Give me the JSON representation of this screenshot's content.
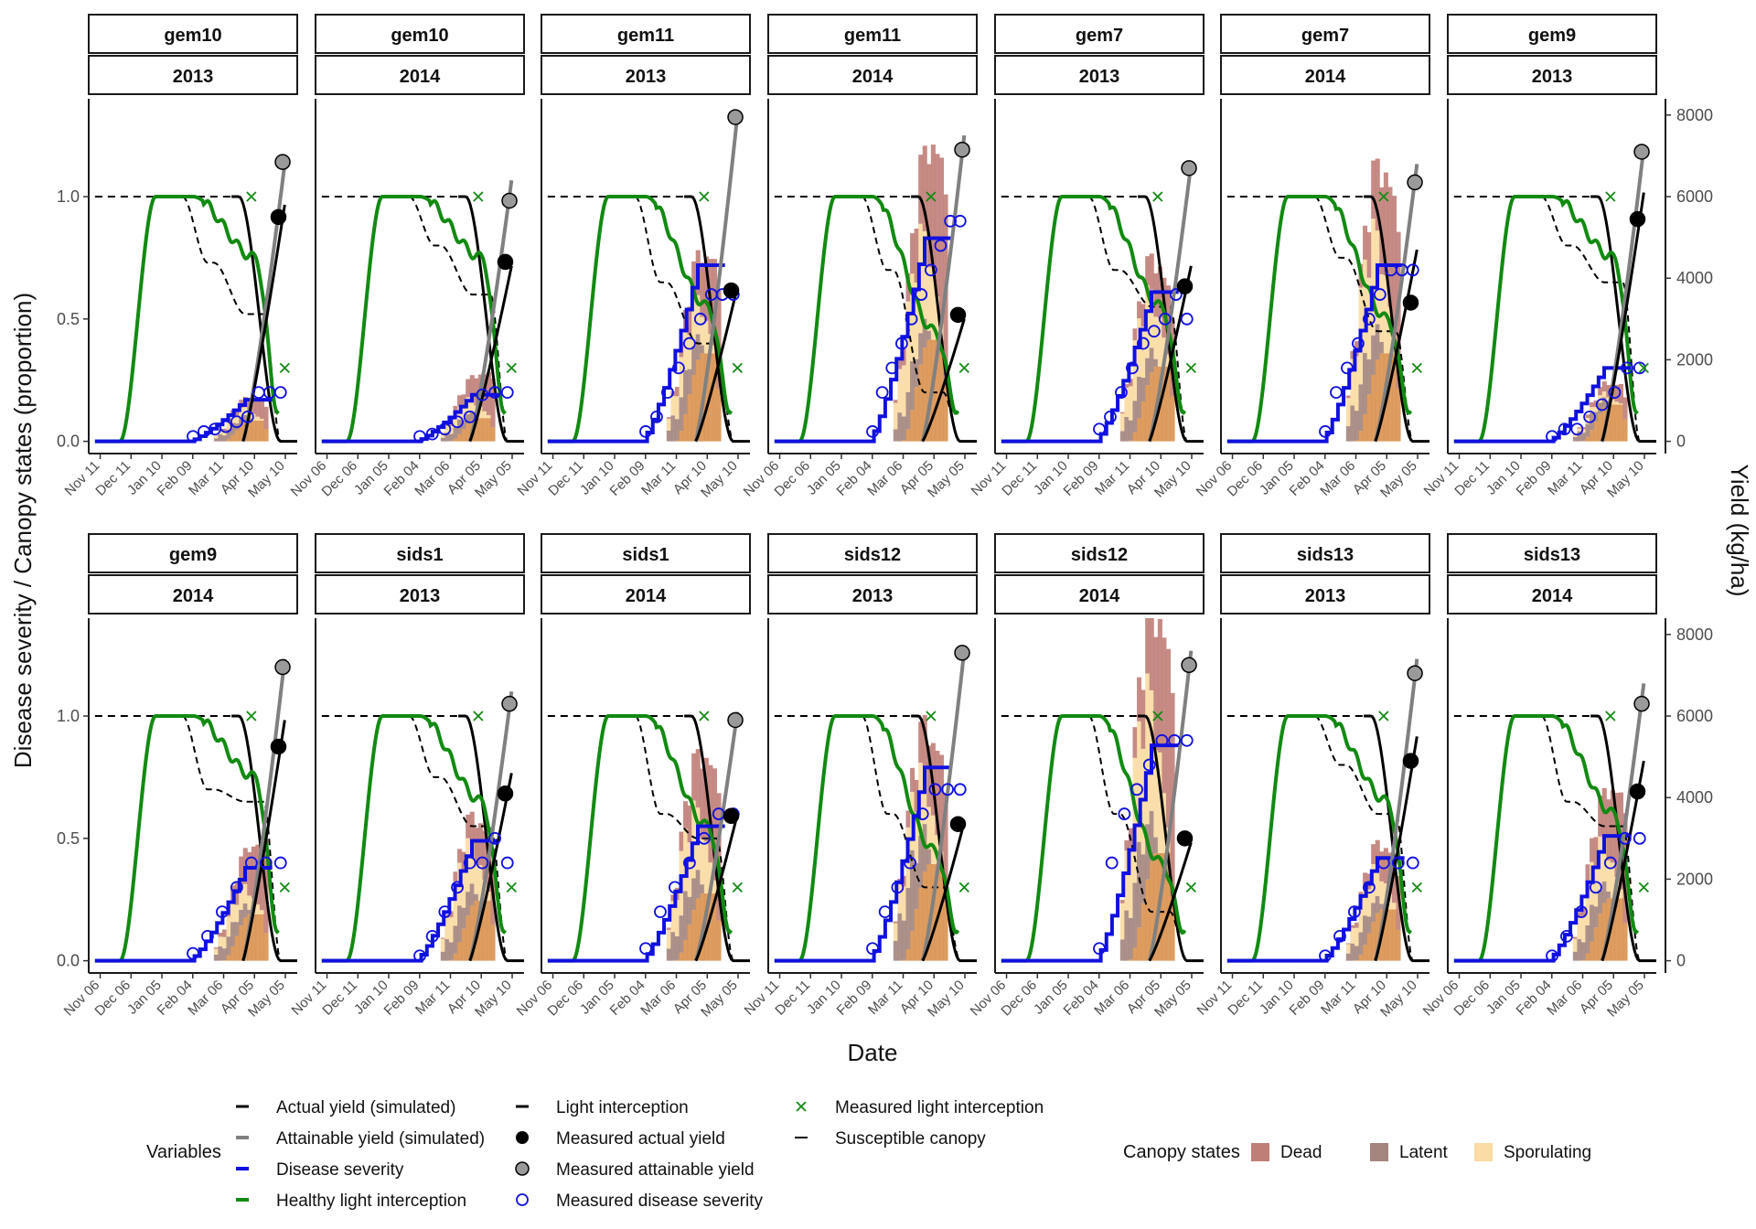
{
  "chart_data": {
    "type": "line",
    "xlabel": "Date",
    "ylabel": "Disease severity / Canopy states (proportion)",
    "y2label": "Yield (kg/ha)",
    "ylim": [
      -0.05,
      1.4
    ],
    "y_ticks": [
      "0.0",
      "0.5",
      "1.0"
    ],
    "y2_ticks": [
      "0",
      "2000",
      "4000",
      "6000",
      "8000"
    ],
    "grid": false,
    "legend_position": "bottom",
    "x_ticks_A": [
      "Nov 11",
      "Dec 11",
      "Jan 10",
      "Feb 09",
      "Mar 11",
      "Apr 10",
      "May 10"
    ],
    "x_ticks_B": [
      "Nov 06",
      "Dec 06",
      "Jan 05",
      "Feb 04",
      "Mar 06",
      "Apr 05",
      "May 05"
    ],
    "panels": [
      {
        "site": "gem10",
        "year": "2013",
        "ticks": "A",
        "sev_final": 0.17,
        "sus_step": 0.73,
        "sus_final": 0.52,
        "healthy_drop": 0.75,
        "attainable_end": 6800,
        "measured_attainable": 6850,
        "actual_end": 5800,
        "measured_actual": 5500,
        "dead_max": 0.09,
        "latent_max": 0.05,
        "spor_max": 0.04,
        "measured_severity": [
          0.02,
          0.04,
          0.05,
          0.06,
          0.08,
          0.1,
          0.2,
          0.2,
          0.2
        ],
        "measured_light": [
          1.0,
          0.3
        ]
      },
      {
        "site": "gem10",
        "year": "2014",
        "ticks": "B",
        "sev_final": 0.19,
        "sus_step": 0.8,
        "sus_final": 0.6,
        "healthy_drop": 0.75,
        "attainable_end": 6400,
        "measured_attainable": 5900,
        "actual_end": 4300,
        "measured_actual": 4400,
        "dead_max": 0.2,
        "latent_max": 0.06,
        "spor_max": 0.07,
        "measured_severity": [
          0.02,
          0.03,
          0.05,
          0.08,
          0.1,
          0.19,
          0.2,
          0.2
        ],
        "measured_light": [
          1.0,
          0.3
        ]
      },
      {
        "site": "gem11",
        "year": "2013",
        "ticks": "A",
        "sev_final": 0.72,
        "sus_step": 0.65,
        "sus_final": 0.4,
        "healthy_drop": 0.55,
        "attainable_end": 8000,
        "measured_attainable": 7950,
        "actual_end": 3800,
        "measured_actual": 3700,
        "dead_max": 0.4,
        "latent_max": 0.18,
        "spor_max": 0.2,
        "measured_severity": [
          0.04,
          0.1,
          0.2,
          0.3,
          0.4,
          0.5,
          0.6,
          0.6,
          0.6
        ],
        "measured_light": [
          1.0,
          0.3
        ]
      },
      {
        "site": "gem11",
        "year": "2014",
        "ticks": "B",
        "sev_final": 0.83,
        "sus_step": 0.7,
        "sus_final": 0.2,
        "healthy_drop": 0.45,
        "attainable_end": 7500,
        "measured_attainable": 7150,
        "actual_end": 3000,
        "measured_actual": 3100,
        "dead_max": 0.76,
        "latent_max": 0.2,
        "spor_max": 0.45,
        "measured_severity": [
          0.04,
          0.2,
          0.3,
          0.4,
          0.5,
          0.6,
          0.7,
          0.8,
          0.9,
          0.9
        ],
        "measured_light": [
          1.0,
          0.3
        ]
      },
      {
        "site": "gem7",
        "year": "2013",
        "ticks": "A",
        "sev_final": 0.61,
        "sus_step": 0.7,
        "sus_final": 0.55,
        "healthy_drop": 0.55,
        "attainable_end": 6800,
        "measured_attainable": 6700,
        "actual_end": 4300,
        "measured_actual": 3800,
        "dead_max": 0.32,
        "latent_max": 0.17,
        "spor_max": 0.3,
        "measured_severity": [
          0.05,
          0.1,
          0.2,
          0.3,
          0.4,
          0.45,
          0.5,
          0.6,
          0.5
        ],
        "measured_light": [
          1.0,
          0.3
        ]
      },
      {
        "site": "gem7",
        "year": "2014",
        "ticks": "B",
        "sev_final": 0.72,
        "sus_step": 0.75,
        "sus_final": 0.45,
        "healthy_drop": 0.5,
        "attainable_end": 6800,
        "measured_attainable": 6350,
        "actual_end": 4700,
        "measured_actual": 3400,
        "dead_max": 0.64,
        "latent_max": 0.25,
        "spor_max": 0.48,
        "measured_severity": [
          0.04,
          0.2,
          0.3,
          0.4,
          0.5,
          0.6,
          0.7,
          0.7,
          0.7
        ],
        "measured_light": [
          1.0,
          0.3
        ]
      },
      {
        "site": "gem9",
        "year": "2013",
        "ticks": "A",
        "sev_final": 0.3,
        "sus_step": 0.8,
        "sus_final": 0.65,
        "healthy_drop": 0.75,
        "attainable_end": 7200,
        "measured_attainable": 7100,
        "actual_end": 6100,
        "measured_actual": 5450,
        "dead_max": 0.09,
        "latent_max": 0.07,
        "spor_max": 0.03,
        "measured_severity": [
          0.02,
          0.05,
          0.05,
          0.1,
          0.15,
          0.2,
          0.3,
          0.3
        ],
        "measured_light": [
          1.0,
          0.3
        ]
      },
      {
        "site": "gem9",
        "year": "2014",
        "ticks": "B",
        "sev_final": 0.38,
        "sus_step": 0.7,
        "sus_final": 0.65,
        "healthy_drop": 0.75,
        "attainable_end": 7400,
        "measured_attainable": 7200,
        "actual_end": 5900,
        "measured_actual": 5250,
        "dead_max": 0.32,
        "latent_max": 0.1,
        "spor_max": 0.1,
        "measured_severity": [
          0.03,
          0.1,
          0.2,
          0.3,
          0.4,
          0.4,
          0.4
        ],
        "measured_light": [
          1.0,
          0.3
        ]
      },
      {
        "site": "sids1",
        "year": "2013",
        "ticks": "A",
        "sev_final": 0.49,
        "sus_step": 0.75,
        "sus_final": 0.55,
        "healthy_drop": 0.65,
        "attainable_end": 6600,
        "measured_attainable": 6300,
        "actual_end": 4600,
        "measured_actual": 4100,
        "dead_max": 0.26,
        "latent_max": 0.15,
        "spor_max": 0.22,
        "measured_severity": [
          0.02,
          0.1,
          0.2,
          0.3,
          0.4,
          0.4,
          0.5,
          0.4
        ],
        "measured_light": [
          1.0,
          0.3
        ]
      },
      {
        "site": "sids1",
        "year": "2014",
        "ticks": "B",
        "sev_final": 0.55,
        "sus_step": 0.6,
        "sus_final": 0.5,
        "healthy_drop": 0.55,
        "attainable_end": 6100,
        "measured_attainable": 5900,
        "actual_end": 3600,
        "measured_actual": 3550,
        "dead_max": 0.52,
        "latent_max": 0.2,
        "spor_max": 0.32,
        "measured_severity": [
          0.05,
          0.2,
          0.3,
          0.4,
          0.5,
          0.6,
          0.6
        ],
        "measured_light": [
          1.0,
          0.3
        ]
      },
      {
        "site": "sids12",
        "year": "2013",
        "ticks": "A",
        "sev_final": 0.79,
        "sus_step": 0.6,
        "sus_final": 0.3,
        "healthy_drop": 0.45,
        "attainable_end": 7600,
        "measured_attainable": 7550,
        "actual_end": 3400,
        "measured_actual": 3350,
        "dead_max": 0.45,
        "latent_max": 0.33,
        "spor_max": 0.3,
        "measured_severity": [
          0.05,
          0.2,
          0.3,
          0.4,
          0.6,
          0.7,
          0.7,
          0.7
        ],
        "measured_light": [
          1.0,
          0.3
        ]
      },
      {
        "site": "sids12",
        "year": "2014",
        "ticks": "B",
        "sev_final": 0.88,
        "sus_step": 0.6,
        "sus_final": 0.2,
        "healthy_drop": 0.4,
        "attainable_end": 7600,
        "measured_attainable": 7250,
        "actual_end": 2900,
        "measured_actual": 3000,
        "dead_max": 0.83,
        "latent_max": 0.35,
        "spor_max": 0.62,
        "measured_severity": [
          0.05,
          0.4,
          0.6,
          0.7,
          0.8,
          0.9,
          0.9,
          0.9
        ],
        "measured_light": [
          1.0,
          0.3
        ]
      },
      {
        "site": "sids13",
        "year": "2013",
        "ticks": "A",
        "sev_final": 0.42,
        "sus_step": 0.8,
        "sus_final": 0.6,
        "healthy_drop": 0.65,
        "attainable_end": 7400,
        "measured_attainable": 7050,
        "actual_end": 5500,
        "measured_actual": 4900,
        "dead_max": 0.22,
        "latent_max": 0.12,
        "spor_max": 0.16,
        "measured_severity": [
          0.02,
          0.1,
          0.2,
          0.3,
          0.4,
          0.4,
          0.4
        ],
        "measured_light": [
          1.0,
          0.3
        ]
      },
      {
        "site": "sids13",
        "year": "2014",
        "ticks": "B",
        "sev_final": 0.51,
        "sus_step": 0.65,
        "sus_final": 0.55,
        "healthy_drop": 0.6,
        "attainable_end": 6800,
        "measured_attainable": 6300,
        "actual_end": 4900,
        "measured_actual": 4150,
        "dead_max": 0.45,
        "latent_max": 0.15,
        "spor_max": 0.22,
        "measured_severity": [
          0.02,
          0.1,
          0.2,
          0.3,
          0.4,
          0.5,
          0.5
        ],
        "measured_light": [
          1.0,
          0.3
        ]
      }
    ]
  },
  "legend": {
    "variables_title": "Variables",
    "variables": [
      {
        "label": "Actual yield (simulated)",
        "key": "line",
        "color": "#000000",
        "width": 3
      },
      {
        "label": "Attainable yield (simulated)",
        "key": "line",
        "color": "#808080",
        "width": 4
      },
      {
        "label": "Disease severity",
        "key": "line",
        "color": "#1010e0",
        "width": 4
      },
      {
        "label": "Healthy light interception",
        "key": "line",
        "color": "#128a12",
        "width": 4
      },
      {
        "label": "Light interception",
        "key": "line",
        "color": "#000000",
        "width": 3
      },
      {
        "label": "Measured actual yield",
        "key": "dot-filled",
        "color": "#000000"
      },
      {
        "label": "Measured attainable yield",
        "key": "dot-gray",
        "color": "#999999"
      },
      {
        "label": "Measured disease severity",
        "key": "dot-open",
        "color": "#1010e0"
      },
      {
        "label": "Measured light interception",
        "key": "cross",
        "color": "#128a12"
      },
      {
        "label": "Susceptible canopy",
        "key": "line",
        "color": "#000000",
        "width": 2
      }
    ],
    "canopy_title": "Canopy states",
    "canopy": [
      {
        "label": "Dead",
        "color": "#c07e78"
      },
      {
        "label": "Latent",
        "color": "#a3857e"
      },
      {
        "label": "Sporulating",
        "color": "#fadba3"
      }
    ]
  },
  "colors": {
    "healthy": "#128a12",
    "severity": "#1010e0",
    "attainable": "#808080",
    "actual": "#000000",
    "orange_band": "#d9914f"
  }
}
